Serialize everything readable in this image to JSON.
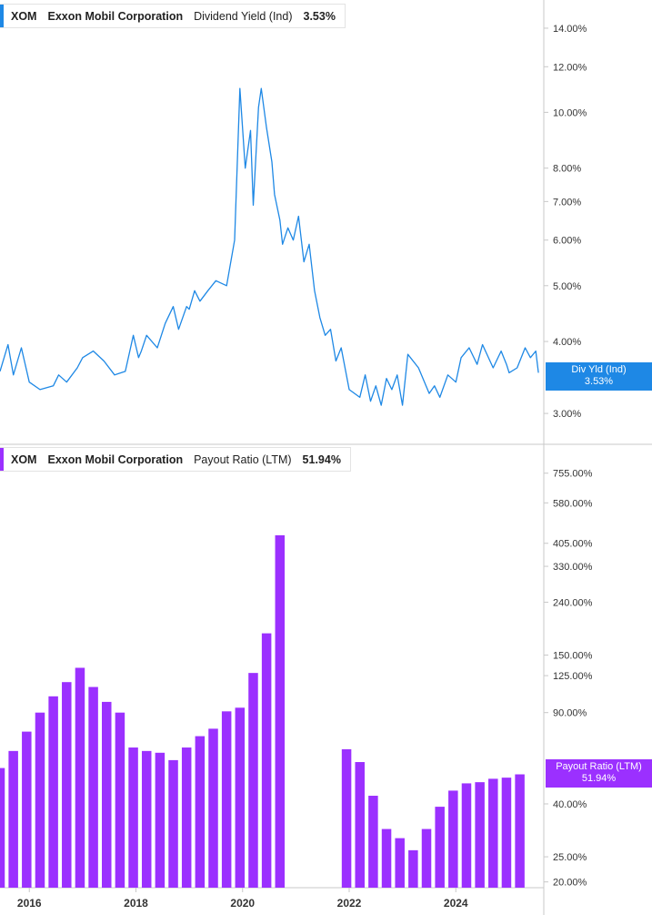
{
  "colors": {
    "yield_line": "#1e88e5",
    "payout_bar": "#9b30ff",
    "axis": "#c8c8c8",
    "tick_text": "#333333"
  },
  "legend_top": {
    "ticker": "XOM",
    "company": "Exxon Mobil Corporation",
    "metric": "Dividend Yield (Ind)",
    "value": "3.53%"
  },
  "legend_bottom": {
    "ticker": "XOM",
    "company": "Exxon Mobil Corporation",
    "metric": "Payout Ratio (LTM)",
    "value": "51.94%"
  },
  "flag_top": {
    "label": "Div Yld (Ind)",
    "value": "3.53%"
  },
  "flag_bottom": {
    "label": "Payout Ratio (LTM)",
    "value": "51.94%"
  },
  "chart_data": [
    {
      "type": "line",
      "title": "Dividend Yield (Ind)",
      "scale": "log",
      "ylim": [
        2.75,
        15.0
      ],
      "yticks": [
        "14.00%",
        "12.00%",
        "10.00%",
        "8.00%",
        "7.00%",
        "6.00%",
        "5.00%",
        "4.00%",
        "3.00%"
      ],
      "ytick_values": [
        14,
        12,
        10,
        8,
        7,
        6,
        5,
        4,
        3
      ],
      "xlim": [
        2015.45,
        2025.65
      ],
      "x": [
        2015.45,
        2015.6,
        2015.7,
        2015.85,
        2016.0,
        2016.2,
        2016.45,
        2016.55,
        2016.7,
        2016.9,
        2017.0,
        2017.2,
        2017.4,
        2017.6,
        2017.8,
        2017.95,
        2018.05,
        2018.1,
        2018.2,
        2018.4,
        2018.55,
        2018.7,
        2018.8,
        2018.95,
        2019.0,
        2019.1,
        2019.2,
        2019.35,
        2019.5,
        2019.7,
        2019.85,
        2019.95,
        2020.05,
        2020.15,
        2020.2,
        2020.3,
        2020.35,
        2020.45,
        2020.55,
        2020.6,
        2020.7,
        2020.75,
        2020.85,
        2020.95,
        2021.05,
        2021.15,
        2021.25,
        2021.35,
        2021.45,
        2021.55,
        2021.65,
        2021.75,
        2021.85,
        2022.0,
        2022.2,
        2022.3,
        2022.4,
        2022.5,
        2022.6,
        2022.7,
        2022.8,
        2022.9,
        2023.0,
        2023.1,
        2023.3,
        2023.5,
        2023.6,
        2023.7,
        2023.85,
        2024.0,
        2024.1,
        2024.25,
        2024.4,
        2024.5,
        2024.7,
        2024.85,
        2024.95,
        2025.0,
        2025.15,
        2025.3,
        2025.4,
        2025.5,
        2025.55
      ],
      "y": [
        3.55,
        3.95,
        3.5,
        3.9,
        3.4,
        3.3,
        3.35,
        3.5,
        3.4,
        3.6,
        3.75,
        3.85,
        3.7,
        3.5,
        3.55,
        4.1,
        3.75,
        3.85,
        4.1,
        3.9,
        4.3,
        4.6,
        4.2,
        4.6,
        4.55,
        4.9,
        4.7,
        4.9,
        5.1,
        5.0,
        6.0,
        11.0,
        8.0,
        9.3,
        6.9,
        10.2,
        11.0,
        9.4,
        8.2,
        7.2,
        6.5,
        5.9,
        6.3,
        6.0,
        6.6,
        5.5,
        5.9,
        4.9,
        4.4,
        4.1,
        4.2,
        3.7,
        3.9,
        3.3,
        3.2,
        3.5,
        3.15,
        3.35,
        3.1,
        3.45,
        3.3,
        3.5,
        3.1,
        3.8,
        3.6,
        3.25,
        3.35,
        3.2,
        3.5,
        3.4,
        3.75,
        3.9,
        3.65,
        3.95,
        3.6,
        3.85,
        3.65,
        3.53,
        3.6,
        3.9,
        3.75,
        3.85,
        3.53
      ],
      "last_value_label": "3.53%"
    },
    {
      "type": "bar",
      "title": "Payout Ratio (LTM)",
      "scale": "log",
      "ylim": [
        19.0,
        900.0
      ],
      "yticks": [
        "755.00%",
        "580.00%",
        "405.00%",
        "330.00%",
        "240.00%",
        "150.00%",
        "125.00%",
        "90.00%",
        "40.00%",
        "25.00%",
        "20.00%"
      ],
      "ytick_values": [
        755,
        580,
        405,
        330,
        240,
        150,
        125,
        90,
        40,
        25,
        20
      ],
      "xlim": [
        2015.45,
        2025.65
      ],
      "xticks": [
        "2016",
        "2018",
        "2020",
        "2022",
        "2024"
      ],
      "xtick_values": [
        2016,
        2018,
        2020,
        2022,
        2024
      ],
      "x": [
        2015.45,
        2015.7,
        2015.95,
        2016.2,
        2016.45,
        2016.7,
        2016.95,
        2017.2,
        2017.45,
        2017.7,
        2017.95,
        2018.2,
        2018.45,
        2018.7,
        2018.95,
        2019.2,
        2019.45,
        2019.7,
        2019.95,
        2020.2,
        2020.45,
        2020.7,
        2021.95,
        2022.2,
        2022.45,
        2022.7,
        2022.95,
        2023.2,
        2023.45,
        2023.7,
        2023.95,
        2024.2,
        2024.45,
        2024.7,
        2024.95,
        2025.2
      ],
      "values": [
        55,
        64,
        76,
        90,
        104,
        118,
        134,
        113,
        99,
        90,
        66,
        64,
        63,
        59,
        66,
        73,
        78,
        91,
        94,
        128,
        182,
        435,
        65,
        58,
        43,
        32,
        29.5,
        26.5,
        32,
        39,
        45,
        48,
        48.5,
        50,
        50.5,
        52
      ],
      "last_value_label": "51.94%"
    }
  ]
}
